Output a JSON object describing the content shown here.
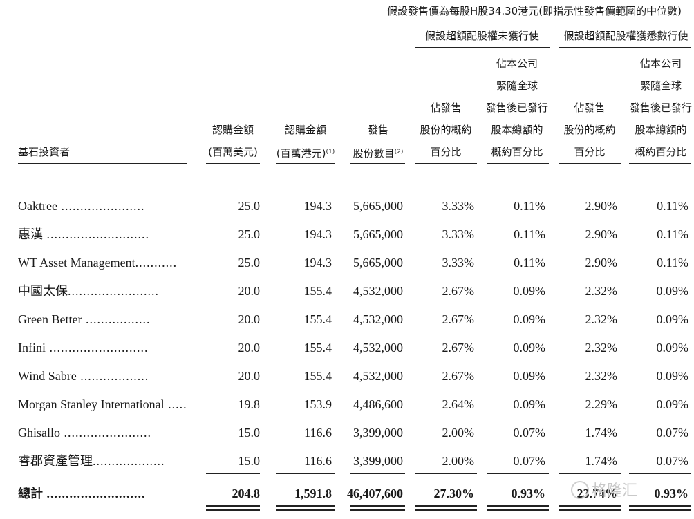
{
  "header": {
    "top_title": "假設發售價為每股H股34.30港元(即指示性發售價範圍的中位數)",
    "group_not_exercised": "假設超額配股權未獲行使",
    "group_exercised": "假設超額配股權獲悉數行使",
    "col_investor": "基石投資者",
    "col_usd": [
      "認購金額",
      "(百萬美元)"
    ],
    "col_hkd": [
      "認購金額",
      "(百萬港元)"
    ],
    "col_hkd_note": "(1)",
    "col_shares": [
      "發售",
      "股份數目"
    ],
    "col_shares_note": "(2)",
    "col_pct_offer": [
      "佔發售",
      "股份的概約",
      "百分比"
    ],
    "col_pct_total": [
      "佔本公司",
      "緊隨全球",
      "發售後已發行",
      "股本總額的",
      "概約百分比"
    ]
  },
  "rows": [
    {
      "name": "Oaktree",
      "dots": " ......................",
      "usd": "25.0",
      "hkd": "194.3",
      "shares": "5,665,000",
      "p1": "3.33%",
      "p2": "0.11%",
      "p3": "2.90%",
      "p4": "0.11%"
    },
    {
      "name": "惠漢",
      "dots": " ...........................",
      "usd": "25.0",
      "hkd": "194.3",
      "shares": "5,665,000",
      "p1": "3.33%",
      "p2": "0.11%",
      "p3": "2.90%",
      "p4": "0.11%"
    },
    {
      "name": "WT Asset Management",
      "dots": "...........",
      "usd": "25.0",
      "hkd": "194.3",
      "shares": "5,665,000",
      "p1": "3.33%",
      "p2": "0.11%",
      "p3": "2.90%",
      "p4": "0.11%"
    },
    {
      "name": "中國太保",
      "dots": "........................",
      "usd": "20.0",
      "hkd": "155.4",
      "shares": "4,532,000",
      "p1": "2.67%",
      "p2": "0.09%",
      "p3": "2.32%",
      "p4": "0.09%"
    },
    {
      "name": "Green Better",
      "dots": " .................",
      "usd": "20.0",
      "hkd": "155.4",
      "shares": "4,532,000",
      "p1": "2.67%",
      "p2": "0.09%",
      "p3": "2.32%",
      "p4": "0.09%"
    },
    {
      "name": "Infini",
      "dots": " ..........................",
      "usd": "20.0",
      "hkd": "155.4",
      "shares": "4,532,000",
      "p1": "2.67%",
      "p2": "0.09%",
      "p3": "2.32%",
      "p4": "0.09%"
    },
    {
      "name": "Wind Sabre",
      "dots": "  ..................",
      "usd": "20.0",
      "hkd": "155.4",
      "shares": "4,532,000",
      "p1": "2.67%",
      "p2": "0.09%",
      "p3": "2.32%",
      "p4": "0.09%"
    },
    {
      "name": "Morgan Stanley International",
      "dots": " ......",
      "usd": "19.8",
      "hkd": "153.9",
      "shares": "4,486,600",
      "p1": "2.64%",
      "p2": "0.09%",
      "p3": "2.29%",
      "p4": "0.09%"
    },
    {
      "name": "Ghisallo",
      "dots": " .......................",
      "usd": "15.0",
      "hkd": "116.6",
      "shares": "3,399,000",
      "p1": "2.00%",
      "p2": "0.07%",
      "p3": "1.74%",
      "p4": "0.07%"
    },
    {
      "name": "睿郡資產管理",
      "dots": "...................",
      "usd": "15.0",
      "hkd": "116.6",
      "shares": "3,399,000",
      "p1": "2.00%",
      "p2": "0.07%",
      "p3": "1.74%",
      "p4": "0.07%"
    }
  ],
  "total": {
    "name": "總計",
    "dots": " ..........................",
    "usd": "204.8",
    "hkd": "1,591.8",
    "shares": "46,407,600",
    "p1": "27.30%",
    "p2": "0.93%",
    "p3": "23.74%",
    "p4": "0.93%"
  },
  "watermark": "格隆汇"
}
